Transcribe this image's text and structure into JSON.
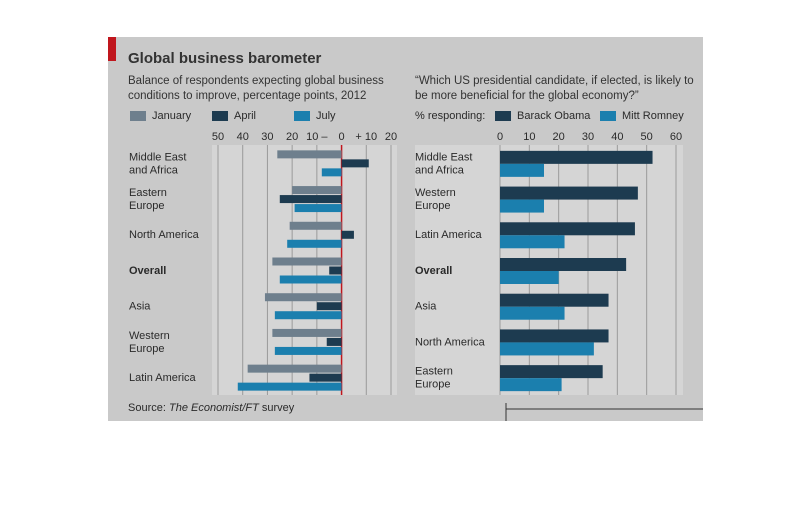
{
  "title": "Global business barometer",
  "source": [
    "Source:",
    "The Economist/FT",
    "survey"
  ],
  "chart_data": [
    {
      "type": "hbar",
      "subtitle": "Balance of respondents expecting global business conditions to improve, percentage points, 2012",
      "categories": [
        "Middle East and Africa",
        "Eastern Europe",
        "North America",
        "Overall",
        "Asia",
        "Western Europe",
        "Latin America"
      ],
      "series": [
        {
          "name": "January",
          "color": "#6e7f8d",
          "values": [
            -26,
            -20,
            -21,
            -28,
            -31,
            -28,
            -38
          ]
        },
        {
          "name": "April",
          "color": "#1d3b50",
          "values": [
            11,
            -25,
            5,
            -5,
            -10,
            -6,
            -13
          ]
        },
        {
          "name": "July",
          "color": "#1b7fae",
          "values": [
            -8,
            -19,
            -22,
            -25,
            -27,
            -27,
            -42
          ]
        }
      ],
      "xlim": [
        -50,
        20
      ],
      "xticks": [
        {
          "value": -50,
          "label": "50"
        },
        {
          "value": -40,
          "label": "40"
        },
        {
          "value": -30,
          "label": "30"
        },
        {
          "value": -20,
          "label": "20"
        },
        {
          "value": -10,
          "label": "10 –"
        },
        0,
        {
          "value": 10,
          "label": "+ 10"
        },
        20
      ],
      "grid": true
    },
    {
      "type": "hbar",
      "subtitle": "“Which US presidential candidate, if elected, is likely to be more beneficial for the global economy?”",
      "legend_label": "% responding:",
      "categories": [
        "Middle East and Africa",
        "Western Europe",
        "Latin America",
        "Overall",
        "Asia",
        "North America",
        "Eastern Europe"
      ],
      "series": [
        {
          "name": "Barack Obama",
          "color": "#1d3b50",
          "values": [
            52,
            47,
            46,
            43,
            37,
            37,
            35
          ]
        },
        {
          "name": "Mitt Romney",
          "color": "#1b7fae",
          "values": [
            15,
            15,
            22,
            20,
            22,
            32,
            21
          ]
        }
      ],
      "xlim": [
        0,
        60
      ],
      "xticks": [
        0,
        10,
        20,
        30,
        40,
        50,
        60
      ],
      "grid": true
    }
  ]
}
